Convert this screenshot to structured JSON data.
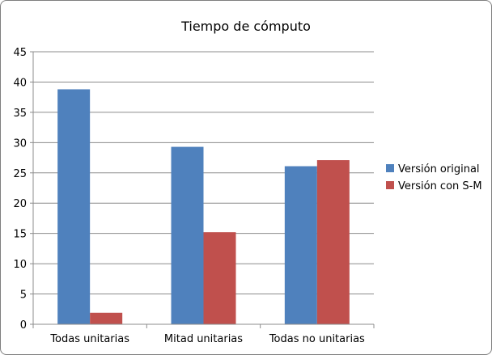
{
  "chart_data": {
    "type": "bar",
    "title": "Tiempo de cómputo",
    "xlabel": "",
    "ylabel": "",
    "categories": [
      "Todas unitarias",
      "Mitad unitarias",
      "Todas no unitarias"
    ],
    "series": [
      {
        "name": "Versión original",
        "color": "#4f81bd",
        "values": [
          38.8,
          29.3,
          26.1
        ]
      },
      {
        "name": "Versión con S-M",
        "color": "#c0504d",
        "values": [
          1.9,
          15.2,
          27.1
        ]
      }
    ],
    "ylim": [
      0,
      45
    ],
    "yticks": [
      0,
      5,
      10,
      15,
      20,
      25,
      30,
      35,
      40,
      45
    ],
    "grid": true,
    "legend": "right"
  }
}
